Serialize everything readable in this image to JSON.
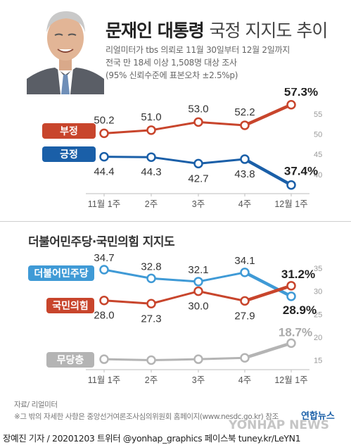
{
  "header": {
    "title_bold": "문재인 대통령",
    "title_light": "국정 지지도 추이",
    "source_lines": [
      "리얼미터가 tbs 의뢰로 11월 30일부터 12월 2일까지",
      "전국 만 18세 이상 1,508명 대상 조사",
      "(95% 신뢰수준에 표본오차 ±2.5%p)"
    ]
  },
  "section2_title": "더불어민주당·국민의힘 지지도",
  "footer": {
    "source": "자료/ 리얼미터",
    "note": "※그 밖의 자세한 사항은 중앙선거여론조사심의위원회 홈페이지(www.nesdc.go.kr) 참조",
    "credit": "장예진 기자 / 20201203 트위터 @yonhap_graphics  페이스북 tuney.kr/LeYN1",
    "logo": "연합뉴스",
    "watermark": "YONHAP NEWS"
  },
  "colors": {
    "negative": "#c8452c",
    "positive": "#1a5fa8",
    "democratic": "#3f9ad6",
    "ppp": "#c8452c",
    "independent": "#b4b4b4"
  },
  "chart_data": [
    {
      "type": "line",
      "categories": [
        "11월 1주",
        "2주",
        "3주",
        "4주",
        "12월 1주"
      ],
      "yticks": [
        55,
        50,
        45,
        40
      ],
      "ylim": [
        37,
        59
      ],
      "grid": false,
      "series": [
        {
          "name": "부정",
          "values": [
            50.2,
            51.0,
            53.0,
            52.2,
            57.3
          ],
          "labels": [
            "50.2",
            "51.0",
            "53.0",
            "52.2",
            "57.3%"
          ],
          "color": "#c8452c"
        },
        {
          "name": "긍정",
          "values": [
            44.4,
            44.3,
            42.7,
            43.8,
            37.4
          ],
          "labels": [
            "44.4",
            "44.3",
            "42.7",
            "43.8",
            "37.4%"
          ],
          "color": "#1a5fa8"
        }
      ]
    },
    {
      "type": "line",
      "categories": [
        "11월 1주",
        "2주",
        "3주",
        "4주",
        "12월 1주"
      ],
      "yticks": [
        35,
        30,
        25,
        20,
        15
      ],
      "ylim": [
        14,
        37
      ],
      "grid": false,
      "series": [
        {
          "name": "더불어민주당",
          "values": [
            34.7,
            32.8,
            32.1,
            34.1,
            28.9
          ],
          "labels": [
            "34.7",
            "32.8",
            "32.1",
            "34.1",
            "28.9%"
          ],
          "color": "#3f9ad6"
        },
        {
          "name": "국민의힘",
          "values": [
            28.0,
            27.3,
            30.0,
            27.9,
            31.2
          ],
          "labels": [
            "28.0",
            "27.3",
            "30.0",
            "27.9",
            "31.2%"
          ],
          "color": "#c8452c"
        },
        {
          "name": "무당층",
          "values": [
            15.2,
            15.0,
            15.2,
            15.5,
            18.7
          ],
          "labels": [
            "",
            "",
            "",
            "",
            "18.7%"
          ],
          "color": "#b4b4b4"
        }
      ]
    }
  ]
}
